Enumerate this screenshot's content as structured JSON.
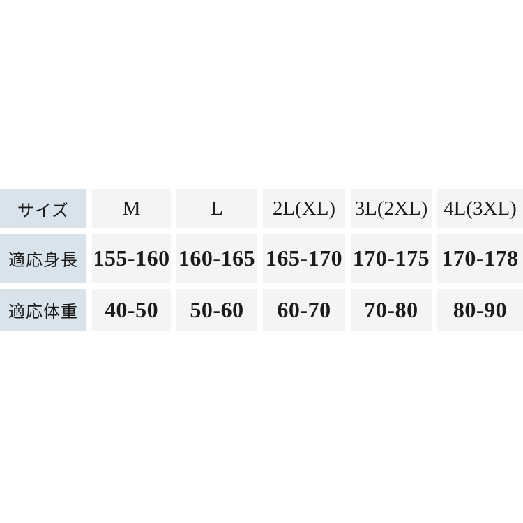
{
  "chart_data": {
    "type": "table",
    "title": "",
    "columns": [
      "サイズ",
      "M",
      "L",
      "2L(XL)",
      "3L(2XL)",
      "4L(3XL)"
    ],
    "rows": [
      [
        "適応身長",
        "155-160",
        "160-165",
        "165-170",
        "170-175",
        "170-178"
      ],
      [
        "適応体重",
        "40-50",
        "50-60",
        "60-70",
        "70-80",
        "80-90"
      ]
    ],
    "layout": {
      "grid": "off",
      "gutters": "white 8px between cells",
      "label_column": "left, light blue background",
      "data_cells": "light gray background"
    }
  },
  "colors": {
    "page_bg": "#ffffff",
    "label_column_bg": "#d9e3ec",
    "cell_bg": "#f4f4f4",
    "text": "#1b1b1b"
  }
}
